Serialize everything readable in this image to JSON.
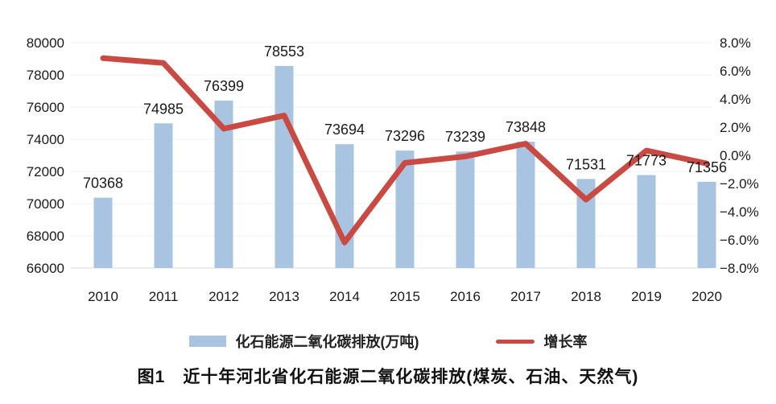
{
  "figure": {
    "caption": "图1　近十年河北省化石能源二氧化碳排放(煤炭、石油、天然气)"
  },
  "legend": {
    "bar_label": "化石能源二氧化碳排放(万吨)",
    "line_label": "增长率"
  },
  "colors": {
    "bar": "#a9c4e0",
    "line": "#c94a42",
    "grid": "#eef1f4",
    "axis_line": "#d9dbde",
    "text": "#1a1a1a"
  },
  "chart_data": {
    "type": "combo-bar-line",
    "title": "图1　近十年河北省化石能源二氧化碳排放(煤炭、石油、天然气)",
    "categories": [
      "2010",
      "2011",
      "2012",
      "2013",
      "2014",
      "2015",
      "2016",
      "2017",
      "2018",
      "2019",
      "2020"
    ],
    "series": [
      {
        "name": "化石能源二氧化碳排放(万吨)",
        "type": "bar",
        "axis": "left",
        "values": [
          70368,
          74985,
          76399,
          78553,
          73694,
          73296,
          73239,
          73848,
          71531,
          71773,
          71356
        ],
        "value_labels": [
          "70368",
          "74985",
          "76399",
          "78553",
          "73694",
          "73296",
          "73239",
          "73848",
          "71531",
          "71773",
          "71356"
        ],
        "show_value_labels": true
      },
      {
        "name": "增长率",
        "type": "line",
        "axis": "right",
        "values": [
          6.9,
          6.56,
          1.89,
          2.82,
          -6.19,
          -0.54,
          -0.08,
          0.83,
          -3.14,
          0.34,
          -0.58
        ]
      }
    ],
    "left_axis": {
      "min": 66000,
      "max": 80000,
      "tick_values": [
        80000,
        78000,
        76000,
        74000,
        72000,
        70000,
        68000,
        66000
      ],
      "tick_labels": [
        "80000",
        "78000",
        "76000",
        "74000",
        "72000",
        "70000",
        "68000",
        "66000"
      ]
    },
    "right_axis": {
      "min": -8,
      "max": 8,
      "tick_values": [
        8,
        6,
        4,
        2,
        0,
        -2,
        -4,
        -6,
        -8
      ],
      "tick_labels": [
        "8.0%",
        "6.0%",
        "4.0%",
        "2.0%",
        "0.0%",
        "−2.0%",
        "−4.0%",
        "−6.0%",
        "−8.0%"
      ]
    },
    "grid": "horizontal",
    "legend_position": "bottom"
  }
}
